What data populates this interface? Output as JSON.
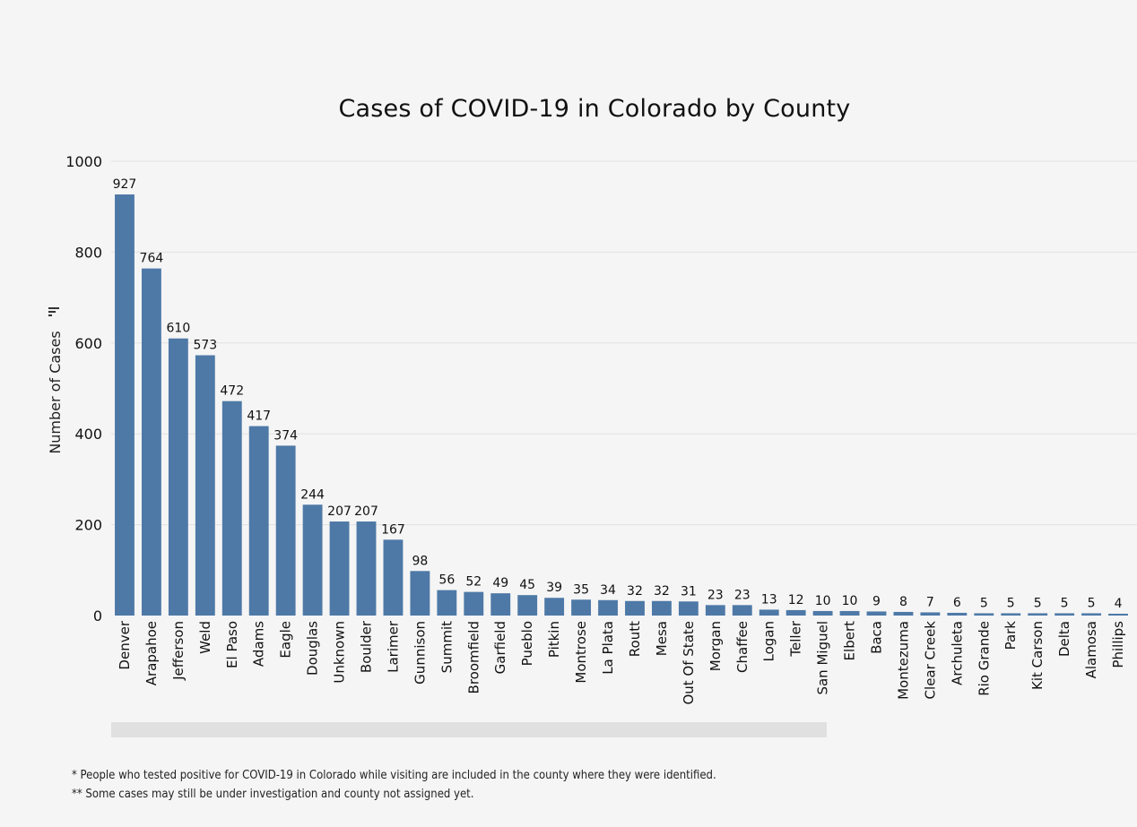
{
  "chart_data": {
    "type": "bar",
    "title": "Cases of COVID-19 in Colorado by County",
    "xlabel": "",
    "ylabel": "Number of Cases",
    "ylim": [
      0,
      1000
    ],
    "yticks": [
      0,
      200,
      400,
      600,
      800,
      1000
    ],
    "grid": true,
    "legend": "none",
    "bar_color": "#4e79a7",
    "categories": [
      "Denver",
      "Arapahoe",
      "Jefferson",
      "Weld",
      "El Paso",
      "Adams",
      "Eagle",
      "Douglas",
      "Unknown",
      "Boulder",
      "Larimer",
      "Gunnison",
      "Summit",
      "Broomfield",
      "Garfield",
      "Pueblo",
      "Pitkin",
      "Montrose",
      "La Plata",
      "Routt",
      "Mesa",
      "Out Of State",
      "Morgan",
      "Chaffee",
      "Logan",
      "Teller",
      "San Miguel",
      "Elbert",
      "Baca",
      "Montezuma",
      "Clear Creek",
      "Archuleta",
      "Rio Grande",
      "Park",
      "Kit Carson",
      "Delta",
      "Alamosa",
      "Phillips"
    ],
    "values": [
      927,
      764,
      610,
      573,
      472,
      417,
      374,
      244,
      207,
      207,
      167,
      98,
      56,
      52,
      49,
      45,
      39,
      35,
      34,
      32,
      32,
      31,
      23,
      23,
      13,
      12,
      10,
      10,
      9,
      8,
      7,
      6,
      5,
      5,
      5,
      5,
      5,
      4
    ]
  },
  "ylabel_icon": "filter-icon",
  "footnotes": [
    "* People who tested positive for COVID-19 in Colorado while visiting are included in the county where they were identified.",
    "** Some cases may still be under investigation and county not assigned yet."
  ]
}
